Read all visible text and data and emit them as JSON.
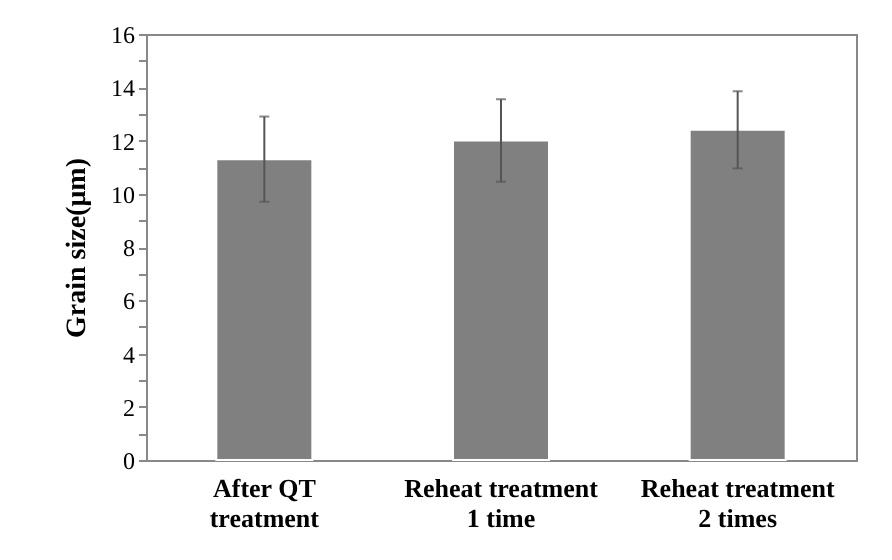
{
  "chart_data": {
    "type": "bar",
    "ylabel": "Grain size(μm)",
    "categories": [
      "After QT\ntreatment",
      "Reheat treatment\n1 time",
      "Reheat treatment\n2 times"
    ],
    "values": [
      11.3,
      12.0,
      12.4
    ],
    "errors": [
      1.6,
      1.55,
      1.45
    ],
    "color": "#808080",
    "ylim": [
      0,
      16
    ],
    "yticks": [
      0,
      {
        "value": 1,
        "label": null
      },
      2,
      {
        "value": 3,
        "label": null
      },
      4,
      {
        "value": 5,
        "label": null
      },
      6,
      {
        "value": 7,
        "label": null
      },
      8,
      {
        "value": 9,
        "label": null
      },
      10,
      {
        "value": 11,
        "label": null
      },
      12,
      {
        "value": 13,
        "label": null
      },
      14,
      {
        "value": 15,
        "label": null
      },
      16
    ],
    "grid": false
  }
}
